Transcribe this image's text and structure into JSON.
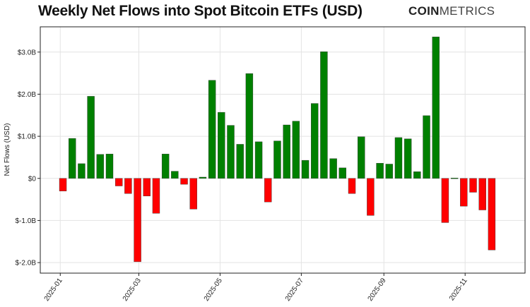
{
  "header": {
    "title": "Weekly Net Flows into Spot Bitcoin ETFs (USD)",
    "logo_bold": "COIN",
    "logo_light": "METRICS"
  },
  "chart_data": {
    "type": "bar",
    "title": "Weekly Net Flows into Spot Bitcoin ETFs (USD)",
    "xlabel": "",
    "ylabel": "Net Flows (USD)",
    "xlim": [
      "2024-12-17",
      "2025-12-16"
    ],
    "ylim": [
      -2.25,
      3.6
    ],
    "y_unit": "billion USD",
    "grid": true,
    "x_ticks": [
      "2025-01",
      "2025-03",
      "2025-05",
      "2025-07",
      "2025-09",
      "2025-11"
    ],
    "y_ticks": [
      {
        "value": -2,
        "label": "$-2.0B"
      },
      {
        "value": -1,
        "label": "$-1.0B"
      },
      {
        "value": 0,
        "label": "$0"
      },
      {
        "value": 1,
        "label": "$1.0B"
      },
      {
        "value": 2,
        "label": "$2.0B"
      },
      {
        "value": 3,
        "label": "$3.0B"
      }
    ],
    "colors": {
      "positive": "#008000",
      "negative": "#ff0000"
    },
    "x": [
      "2025-01-03",
      "2025-01-10",
      "2025-01-17",
      "2025-01-24",
      "2025-01-31",
      "2025-02-07",
      "2025-02-14",
      "2025-02-21",
      "2025-02-28",
      "2025-03-07",
      "2025-03-14",
      "2025-03-21",
      "2025-03-28",
      "2025-04-04",
      "2025-04-11",
      "2025-04-18",
      "2025-04-25",
      "2025-05-02",
      "2025-05-09",
      "2025-05-16",
      "2025-05-23",
      "2025-05-30",
      "2025-06-06",
      "2025-06-13",
      "2025-06-20",
      "2025-06-27",
      "2025-07-04",
      "2025-07-11",
      "2025-07-18",
      "2025-07-25",
      "2025-08-01",
      "2025-08-08",
      "2025-08-15",
      "2025-08-22",
      "2025-08-29",
      "2025-09-05",
      "2025-09-12",
      "2025-09-19",
      "2025-09-26",
      "2025-10-03",
      "2025-10-10",
      "2025-10-17",
      "2025-10-24",
      "2025-10-31",
      "2025-11-07",
      "2025-11-14",
      "2025-11-21"
    ],
    "values": [
      -0.3,
      0.95,
      0.35,
      1.95,
      0.57,
      0.58,
      -0.18,
      -0.36,
      -1.98,
      -0.42,
      -0.83,
      0.58,
      0.17,
      -0.14,
      -0.73,
      0.03,
      2.33,
      1.57,
      1.26,
      0.81,
      2.49,
      0.87,
      -0.56,
      0.89,
      1.27,
      1.36,
      0.43,
      1.78,
      3.01,
      0.47,
      0.25,
      -0.36,
      0.99,
      -0.88,
      0.36,
      0.34,
      0.97,
      0.94,
      0.16,
      1.49,
      3.36,
      -1.05,
      0.01,
      -0.66,
      -0.33,
      -0.75,
      -1.7
    ]
  }
}
